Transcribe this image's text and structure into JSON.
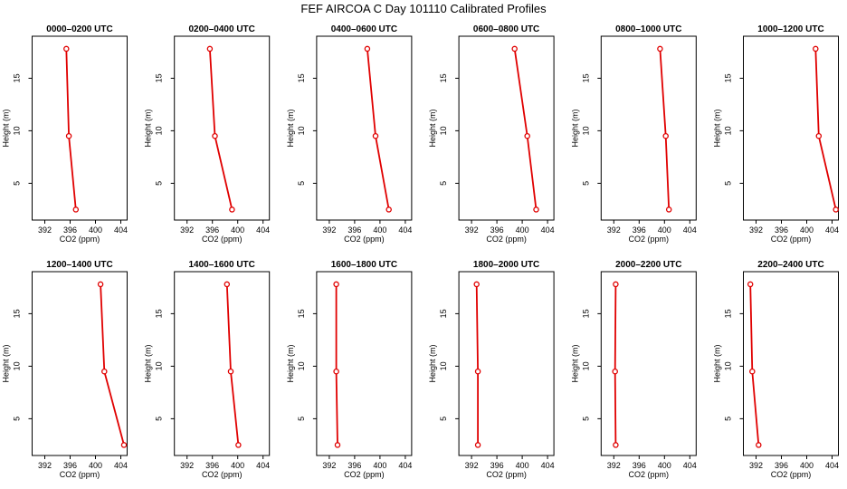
{
  "title": "FEF AIRCOA C  Day 101110  Calibrated Profiles",
  "colors": {
    "series": "#e00000",
    "axis": "#000000"
  },
  "chart_data": [
    {
      "type": "line",
      "title": "0000–0200 UTC",
      "xlabel": "CO2 (ppm)",
      "ylabel": "Height (m)",
      "xlim": [
        390,
        405
      ],
      "ylim": [
        1.5,
        19
      ],
      "xticks": [
        392,
        396,
        400,
        404
      ],
      "yticks": [
        5,
        10,
        15
      ],
      "grid": false,
      "series": [
        {
          "x": [
            396.9,
            395.8,
            395.4
          ],
          "y": [
            2.5,
            9.5,
            17.8
          ]
        }
      ]
    },
    {
      "type": "line",
      "title": "0200–0400 UTC",
      "xlabel": "CO2 (ppm)",
      "ylabel": "Height (m)",
      "xlim": [
        390,
        405
      ],
      "ylim": [
        1.5,
        19
      ],
      "xticks": [
        392,
        396,
        400,
        404
      ],
      "yticks": [
        5,
        10,
        15
      ],
      "grid": false,
      "series": [
        {
          "x": [
            399.1,
            396.4,
            395.6
          ],
          "y": [
            2.5,
            9.5,
            17.8
          ]
        }
      ]
    },
    {
      "type": "line",
      "title": "0400–0600 UTC",
      "xlabel": "CO2 (ppm)",
      "ylabel": "Height (m)",
      "xlim": [
        390,
        405
      ],
      "ylim": [
        1.5,
        19
      ],
      "xticks": [
        392,
        396,
        400,
        404
      ],
      "yticks": [
        5,
        10,
        15
      ],
      "grid": false,
      "series": [
        {
          "x": [
            401.4,
            399.3,
            398.0
          ],
          "y": [
            2.5,
            9.5,
            17.8
          ]
        }
      ]
    },
    {
      "type": "line",
      "title": "0600–0800 UTC",
      "xlabel": "CO2 (ppm)",
      "ylabel": "Height (m)",
      "xlim": [
        390,
        405
      ],
      "ylim": [
        1.5,
        19
      ],
      "xticks": [
        392,
        396,
        400,
        404
      ],
      "yticks": [
        5,
        10,
        15
      ],
      "grid": false,
      "series": [
        {
          "x": [
            402.2,
            400.8,
            398.8
          ],
          "y": [
            2.5,
            9.5,
            17.8
          ]
        }
      ]
    },
    {
      "type": "line",
      "title": "0800–1000 UTC",
      "xlabel": "CO2 (ppm)",
      "ylabel": "Height (m)",
      "xlim": [
        390,
        405
      ],
      "ylim": [
        1.5,
        19
      ],
      "xticks": [
        392,
        396,
        400,
        404
      ],
      "yticks": [
        5,
        10,
        15
      ],
      "grid": false,
      "series": [
        {
          "x": [
            400.7,
            400.2,
            399.3
          ],
          "y": [
            2.5,
            9.5,
            17.8
          ]
        }
      ]
    },
    {
      "type": "line",
      "title": "1000–1200 UTC",
      "xlabel": "CO2 (ppm)",
      "ylabel": "Height (m)",
      "xlim": [
        390,
        405
      ],
      "ylim": [
        1.5,
        19
      ],
      "xticks": [
        392,
        396,
        400,
        404
      ],
      "yticks": [
        5,
        10,
        15
      ],
      "grid": false,
      "series": [
        {
          "x": [
            404.6,
            401.9,
            401.4
          ],
          "y": [
            2.5,
            9.5,
            17.8
          ]
        }
      ]
    },
    {
      "type": "line",
      "title": "1200–1400 UTC",
      "xlabel": "CO2 (ppm)",
      "ylabel": "Height (m)",
      "xlim": [
        390,
        405
      ],
      "ylim": [
        1.5,
        19
      ],
      "xticks": [
        392,
        396,
        400,
        404
      ],
      "yticks": [
        5,
        10,
        15
      ],
      "grid": false,
      "series": [
        {
          "x": [
            404.5,
            401.4,
            400.8
          ],
          "y": [
            2.5,
            9.5,
            17.8
          ]
        }
      ]
    },
    {
      "type": "line",
      "title": "1400–1600 UTC",
      "xlabel": "CO2 (ppm)",
      "ylabel": "Height (m)",
      "xlim": [
        390,
        405
      ],
      "ylim": [
        1.5,
        19
      ],
      "xticks": [
        392,
        396,
        400,
        404
      ],
      "yticks": [
        5,
        10,
        15
      ],
      "grid": false,
      "series": [
        {
          "x": [
            400.1,
            398.9,
            398.3
          ],
          "y": [
            2.5,
            9.5,
            17.8
          ]
        }
      ]
    },
    {
      "type": "line",
      "title": "1600–1800 UTC",
      "xlabel": "CO2 (ppm)",
      "ylabel": "Height (m)",
      "xlim": [
        390,
        405
      ],
      "ylim": [
        1.5,
        19
      ],
      "xticks": [
        392,
        396,
        400,
        404
      ],
      "yticks": [
        5,
        10,
        15
      ],
      "grid": false,
      "series": [
        {
          "x": [
            393.3,
            393.1,
            393.1
          ],
          "y": [
            2.5,
            9.5,
            17.8
          ]
        }
      ]
    },
    {
      "type": "line",
      "title": "1800–2000 UTC",
      "xlabel": "CO2 (ppm)",
      "ylabel": "Height (m)",
      "xlim": [
        390,
        405
      ],
      "ylim": [
        1.5,
        19
      ],
      "xticks": [
        392,
        396,
        400,
        404
      ],
      "yticks": [
        5,
        10,
        15
      ],
      "grid": false,
      "series": [
        {
          "x": [
            393.0,
            393.0,
            392.8
          ],
          "y": [
            2.5,
            9.5,
            17.8
          ]
        }
      ]
    },
    {
      "type": "line",
      "title": "2000–2200 UTC",
      "xlabel": "CO2 (ppm)",
      "ylabel": "Height (m)",
      "xlim": [
        390,
        405
      ],
      "ylim": [
        1.5,
        19
      ],
      "xticks": [
        392,
        396,
        400,
        404
      ],
      "yticks": [
        5,
        10,
        15
      ],
      "grid": false,
      "series": [
        {
          "x": [
            392.3,
            392.2,
            392.3
          ],
          "y": [
            2.5,
            9.5,
            17.8
          ]
        }
      ]
    },
    {
      "type": "line",
      "title": "2200–2400 UTC",
      "xlabel": "CO2 (ppm)",
      "ylabel": "Height (m)",
      "xlim": [
        390,
        405
      ],
      "ylim": [
        1.5,
        19
      ],
      "xticks": [
        392,
        396,
        400,
        404
      ],
      "yticks": [
        5,
        10,
        15
      ],
      "grid": false,
      "series": [
        {
          "x": [
            392.4,
            391.4,
            391.1
          ],
          "y": [
            2.5,
            9.5,
            17.8
          ]
        }
      ]
    }
  ]
}
